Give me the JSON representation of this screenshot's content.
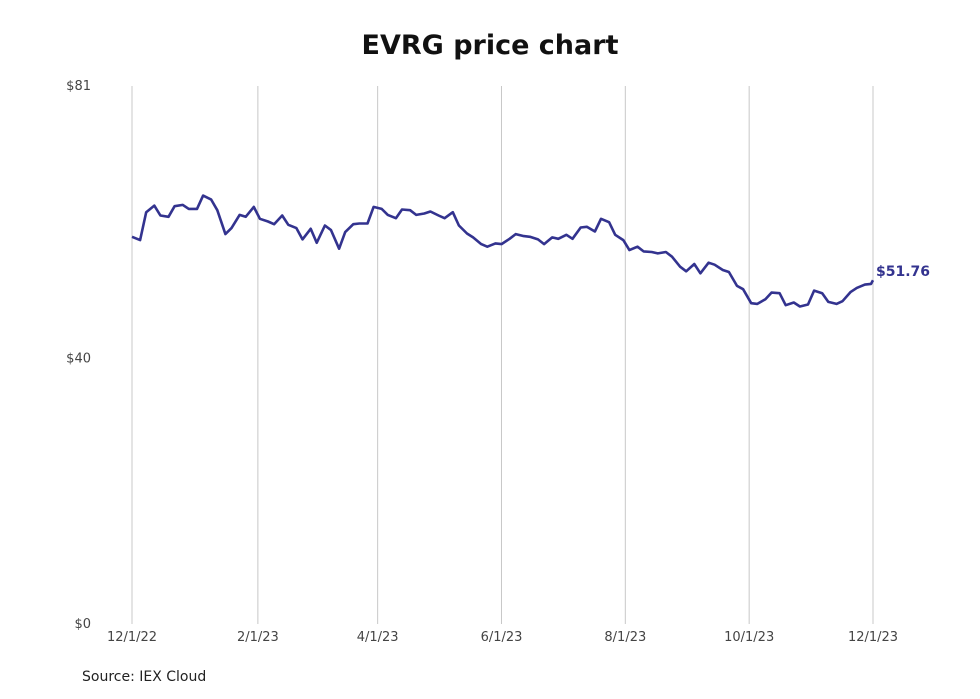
{
  "chart_data": {
    "type": "line",
    "title": "EVRG price chart",
    "source": "Source: IEX Cloud",
    "y_tick_labels": [
      "$0",
      "$40",
      "$81"
    ],
    "y_ticks": [
      0,
      40,
      81
    ],
    "ylim": [
      0,
      81
    ],
    "x_tick_labels": [
      "12/1/22",
      "2/1/23",
      "4/1/23",
      "6/1/23",
      "8/1/23",
      "10/1/23",
      "12/1/23"
    ],
    "x_ticks": [
      "2022-12-01",
      "2023-02-01",
      "2023-04-01",
      "2023-06-01",
      "2023-08-01",
      "2023-10-01",
      "2023-12-01"
    ],
    "xlim": [
      "2022-12-01",
      "2023-12-01"
    ],
    "grid": "vertical",
    "line_color": "#33338f",
    "last_value_label": "$51.76",
    "series": [
      {
        "x": [
          "2022-12-01",
          "2022-12-05",
          "2022-12-08",
          "2022-12-12",
          "2022-12-15",
          "2022-12-19",
          "2022-12-22",
          "2022-12-26",
          "2022-12-29",
          "2023-01-02",
          "2023-01-05",
          "2023-01-09",
          "2023-01-12",
          "2023-01-16",
          "2023-01-19",
          "2023-01-23",
          "2023-01-26",
          "2023-01-30",
          "2023-02-02",
          "2023-02-06",
          "2023-02-09",
          "2023-02-13",
          "2023-02-16",
          "2023-02-20",
          "2023-02-23",
          "2023-02-27",
          "2023-03-02",
          "2023-03-06",
          "2023-03-09",
          "2023-03-13",
          "2023-03-16",
          "2023-03-20",
          "2023-03-23",
          "2023-03-27",
          "2023-03-30",
          "2023-04-03",
          "2023-04-06",
          "2023-04-10",
          "2023-04-13",
          "2023-04-17",
          "2023-04-20",
          "2023-04-24",
          "2023-04-27",
          "2023-05-01",
          "2023-05-04",
          "2023-05-08",
          "2023-05-11",
          "2023-05-15",
          "2023-05-18",
          "2023-05-22",
          "2023-05-25",
          "2023-05-29",
          "2023-06-01",
          "2023-06-05",
          "2023-06-08",
          "2023-06-12",
          "2023-06-15",
          "2023-06-19",
          "2023-06-22",
          "2023-06-26",
          "2023-06-29",
          "2023-07-03",
          "2023-07-06",
          "2023-07-10",
          "2023-07-13",
          "2023-07-17",
          "2023-07-20",
          "2023-07-24",
          "2023-07-27",
          "2023-07-31",
          "2023-08-03",
          "2023-08-07",
          "2023-08-10",
          "2023-08-14",
          "2023-08-17",
          "2023-08-21",
          "2023-08-24",
          "2023-08-28",
          "2023-08-31",
          "2023-09-04",
          "2023-09-07",
          "2023-09-11",
          "2023-09-14",
          "2023-09-18",
          "2023-09-21",
          "2023-09-25",
          "2023-09-28",
          "2023-10-02",
          "2023-10-05",
          "2023-10-09",
          "2023-10-12",
          "2023-10-16",
          "2023-10-19",
          "2023-10-23",
          "2023-10-26",
          "2023-10-30",
          "2023-11-02",
          "2023-11-06",
          "2023-11-09",
          "2023-11-13",
          "2023-11-16",
          "2023-11-20",
          "2023-11-23",
          "2023-11-27",
          "2023-11-30",
          "2023-12-01"
        ],
        "y": [
          58.3,
          57.8,
          62.0,
          63.0,
          61.5,
          61.3,
          62.9,
          63.1,
          62.5,
          62.5,
          64.5,
          63.9,
          62.3,
          58.7,
          59.6,
          61.6,
          61.3,
          62.8,
          61.0,
          60.6,
          60.2,
          61.5,
          60.1,
          59.6,
          57.9,
          59.5,
          57.4,
          60.0,
          59.3,
          56.5,
          59.0,
          60.2,
          60.3,
          60.3,
          62.8,
          62.5,
          61.6,
          61.1,
          62.4,
          62.3,
          61.6,
          61.8,
          62.1,
          61.5,
          61.1,
          62.0,
          60.0,
          58.8,
          58.2,
          57.2,
          56.8,
          57.3,
          57.2,
          58.0,
          58.7,
          58.4,
          58.3,
          57.9,
          57.2,
          58.2,
          58.0,
          58.6,
          58.0,
          59.7,
          59.8,
          59.1,
          61.0,
          60.5,
          58.6,
          57.8,
          56.3,
          56.8,
          56.1,
          56.0,
          55.8,
          56.0,
          55.3,
          53.8,
          53.1,
          54.2,
          52.8,
          54.4,
          54.1,
          53.3,
          53.0,
          50.9,
          50.4,
          48.3,
          48.2,
          48.9,
          49.9,
          49.8,
          48.0,
          48.4,
          47.8,
          48.1,
          50.2,
          49.8,
          48.5,
          48.2,
          48.6,
          50.0,
          50.6,
          51.1,
          51.2,
          51.76
        ]
      }
    ]
  }
}
